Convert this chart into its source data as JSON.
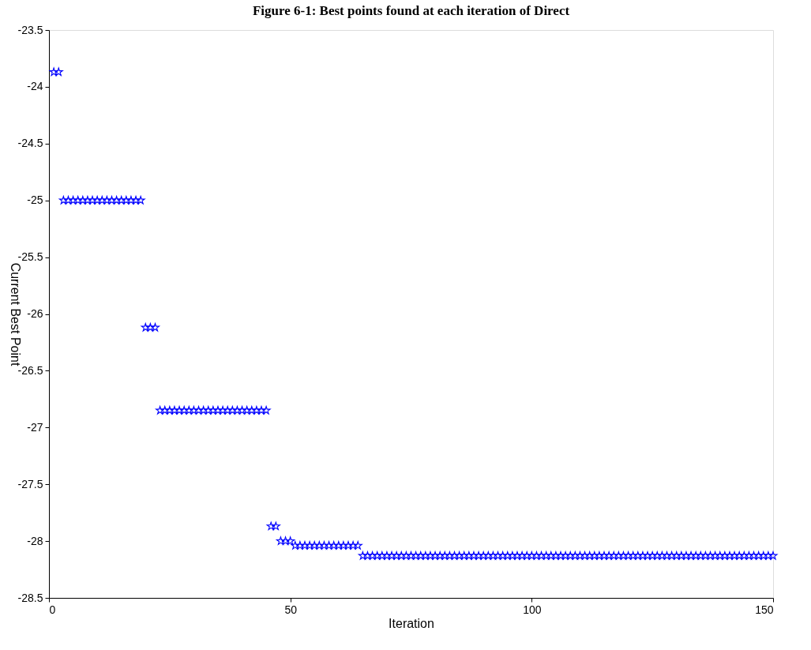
{
  "chart_data": {
    "type": "scatter",
    "title": "Figure 6-1: Best points found at each iteration of Direct",
    "xlabel": "Iteration",
    "ylabel": "Current Best Point",
    "x": [
      1,
      2,
      3,
      4,
      5,
      6,
      7,
      8,
      9,
      10,
      11,
      12,
      13,
      14,
      15,
      16,
      17,
      18,
      19,
      20,
      21,
      22,
      23,
      24,
      25,
      26,
      27,
      28,
      29,
      30,
      31,
      32,
      33,
      34,
      35,
      36,
      37,
      38,
      39,
      40,
      41,
      42,
      43,
      44,
      45,
      46,
      47,
      48,
      49,
      50,
      51,
      52,
      53,
      54,
      55,
      56,
      57,
      58,
      59,
      60,
      61,
      62,
      63,
      64,
      65,
      66,
      67,
      68,
      69,
      70,
      71,
      72,
      73,
      74,
      75,
      76,
      77,
      78,
      79,
      80,
      81,
      82,
      83,
      84,
      85,
      86,
      87,
      88,
      89,
      90,
      91,
      92,
      93,
      94,
      95,
      96,
      97,
      98,
      99,
      100,
      101,
      102,
      103,
      104,
      105,
      106,
      107,
      108,
      109,
      110,
      111,
      112,
      113,
      114,
      115,
      116,
      117,
      118,
      119,
      120,
      121,
      122,
      123,
      124,
      125,
      126,
      127,
      128,
      129,
      130,
      131,
      132,
      133,
      134,
      135,
      136,
      137,
      138,
      139,
      140,
      141,
      142,
      143,
      144,
      145,
      146,
      147,
      148,
      149,
      150
    ],
    "series": [
      {
        "color": "#0000ff",
        "values": [
          -23.87,
          -23.87,
          -25.0,
          -25.0,
          -25.0,
          -25.0,
          -25.0,
          -25.0,
          -25.0,
          -25.0,
          -25.0,
          -25.0,
          -25.0,
          -25.0,
          -25.0,
          -25.0,
          -25.0,
          -25.0,
          -25.0,
          -26.12,
          -26.12,
          -26.12,
          -26.85,
          -26.85,
          -26.85,
          -26.85,
          -26.85,
          -26.85,
          -26.85,
          -26.85,
          -26.85,
          -26.85,
          -26.85,
          -26.85,
          -26.85,
          -26.85,
          -26.85,
          -26.85,
          -26.85,
          -26.85,
          -26.85,
          -26.85,
          -26.85,
          -26.85,
          -26.85,
          -27.87,
          -27.87,
          -28.0,
          -28.0,
          -28.0,
          -28.04,
          -28.04,
          -28.04,
          -28.04,
          -28.04,
          -28.04,
          -28.04,
          -28.04,
          -28.04,
          -28.04,
          -28.04,
          -28.04,
          -28.04,
          -28.04,
          -28.13,
          -28.13,
          -28.13,
          -28.13,
          -28.13,
          -28.13,
          -28.13,
          -28.13,
          -28.13,
          -28.13,
          -28.13,
          -28.13,
          -28.13,
          -28.13,
          -28.13,
          -28.13,
          -28.13,
          -28.13,
          -28.13,
          -28.13,
          -28.13,
          -28.13,
          -28.13,
          -28.13,
          -28.13,
          -28.13,
          -28.13,
          -28.13,
          -28.13,
          -28.13,
          -28.13,
          -28.13,
          -28.13,
          -28.13,
          -28.13,
          -28.13,
          -28.13,
          -28.13,
          -28.13,
          -28.13,
          -28.13,
          -28.13,
          -28.13,
          -28.13,
          -28.13,
          -28.13,
          -28.13,
          -28.13,
          -28.13,
          -28.13,
          -28.13,
          -28.13,
          -28.13,
          -28.13,
          -28.13,
          -28.13,
          -28.13,
          -28.13,
          -28.13,
          -28.13,
          -28.13,
          -28.13,
          -28.13,
          -28.13,
          -28.13,
          -28.13,
          -28.13,
          -28.13,
          -28.13,
          -28.13,
          -28.13,
          -28.13,
          -28.13,
          -28.13,
          -28.13,
          -28.13,
          -28.13,
          -28.13,
          -28.13,
          -28.13,
          -28.13,
          -28.13,
          -28.13,
          -28.13,
          -28.13,
          -28.13
        ]
      }
    ],
    "xlim": [
      0,
      150
    ],
    "xticks": [
      0,
      50,
      100,
      150
    ],
    "ylim": [
      -28.5,
      -23.5
    ],
    "yticks": [
      -28.5,
      -28,
      -27.5,
      -27,
      -26.5,
      -26,
      -25.5,
      -25,
      -24.5,
      -24,
      -23.5
    ],
    "marker": "star",
    "grid": false,
    "legend": false
  }
}
